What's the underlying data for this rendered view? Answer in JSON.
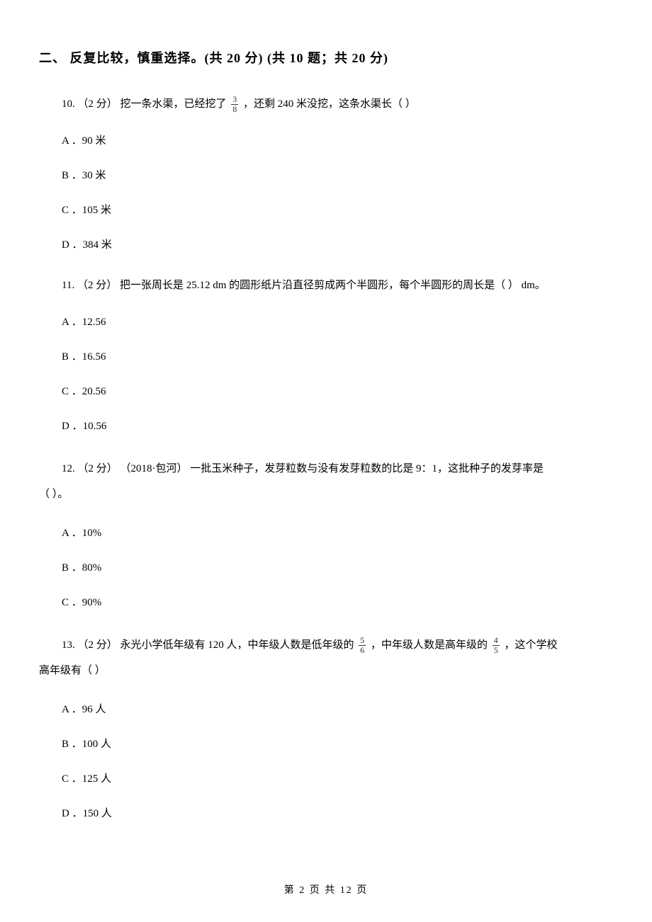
{
  "section": {
    "title": "二、 反复比较，慎重选择。(共 20 分)  (共 10 题；共 20 分)"
  },
  "questions": [
    {
      "number": "10.",
      "points": "（2 分）",
      "text_before_frac": " 挖一条水渠，已经挖了 ",
      "fraction": {
        "num": "3",
        "den": "8"
      },
      "text_after_frac": " ，还剩 240 米没挖，这条水渠长（    ）",
      "options": [
        {
          "label": "A ．",
          "text": "90 米"
        },
        {
          "label": "B ．",
          "text": "30 米"
        },
        {
          "label": "C ．",
          "text": "105 米"
        },
        {
          "label": "D ．",
          "text": "384 米"
        }
      ]
    },
    {
      "number": "11.",
      "points": "（2 分）",
      "text": " 把一张周长是 25.12 dm 的圆形纸片沿直径剪成两个半圆形，每个半圆形的周长是（    ） dm。",
      "options": [
        {
          "label": "A ．",
          "text": "12.56"
        },
        {
          "label": "B ．",
          "text": "16.56"
        },
        {
          "label": "C ．",
          "text": "20.56"
        },
        {
          "label": "D ．",
          "text": "10.56"
        }
      ]
    },
    {
      "number": "12.",
      "points": "（2 分）",
      "source": "（2018·包河）",
      "text_line1": "一批玉米种子，发芽粒数与没有发芽粒数的比是 9：1，这批种子的发芽率是",
      "text_line2": "（     ）。",
      "options": [
        {
          "label": "A ．",
          "text": "10%"
        },
        {
          "label": "B ．",
          "text": "80%"
        },
        {
          "label": "C ．",
          "text": "90%"
        }
      ]
    },
    {
      "number": "13.",
      "points": "（2 分）",
      "text_part1": " 永光小学低年级有 120 人，中年级人数是低年级的 ",
      "fraction1": {
        "num": "5",
        "den": "6"
      },
      "text_part2": " ，中年级人数是高年级的 ",
      "fraction2": {
        "num": "4",
        "den": "5"
      },
      "text_part3": " ，这个学校",
      "text_line2": "高年级有（    ）",
      "options": [
        {
          "label": "A ．",
          "text": "96 人"
        },
        {
          "label": "B ．",
          "text": "100 人"
        },
        {
          "label": "C ．",
          "text": "125 人"
        },
        {
          "label": "D ．",
          "text": "150 人"
        }
      ]
    }
  ],
  "footer": {
    "text": "第 2 页 共 12 页"
  }
}
